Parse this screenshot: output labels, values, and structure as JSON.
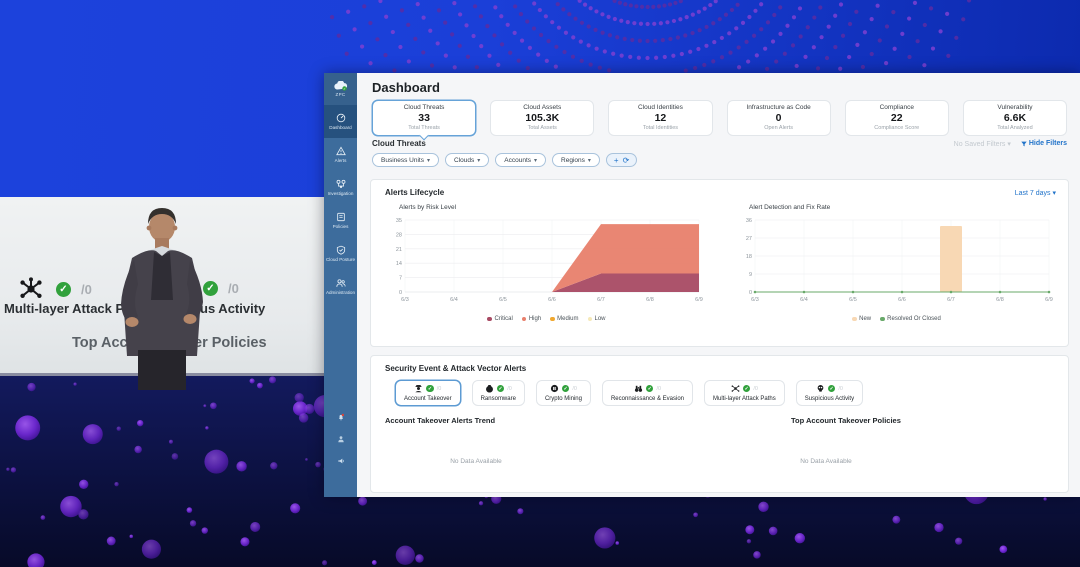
{
  "glyphs": {
    "dropdown": "▾",
    "check": "✓",
    "add": "+",
    "refresh": "⟳"
  },
  "stage": {
    "projection": {
      "attack_paths_count": "/0",
      "attack_paths_label": "Multi-layer Attack Pa",
      "suspicious_count": "/0",
      "suspicious_label": "us Activity",
      "policies_left": "Top Acc",
      "policies_right": "er Policies"
    }
  },
  "sidebar": {
    "logo_label": "ZPC",
    "items": [
      {
        "label": "Dashboard"
      },
      {
        "label": "Alerts"
      },
      {
        "label": "Investigation"
      },
      {
        "label": "Policies"
      },
      {
        "label": "Cloud Posture"
      },
      {
        "label": "Administration"
      }
    ]
  },
  "header": {
    "title": "Dashboard"
  },
  "summary_cards": [
    {
      "title": "Cloud Threats",
      "value": "33",
      "subtitle": "Total Threats",
      "selected": true
    },
    {
      "title": "Cloud Assets",
      "value": "105.3K",
      "subtitle": "Total Assets",
      "selected": false
    },
    {
      "title": "Cloud Identities",
      "value": "12",
      "subtitle": "Total Identities",
      "selected": false
    },
    {
      "title": "Infrastructure as Code",
      "value": "0",
      "subtitle": "Open Alerts",
      "selected": false
    },
    {
      "title": "Compliance",
      "value": "22",
      "subtitle": "Compliance Score",
      "selected": false
    },
    {
      "title": "Vulnerability",
      "value": "6.6K",
      "subtitle": "Total Analyzed",
      "selected": false
    }
  ],
  "filters": {
    "section_title": "Cloud Threats",
    "saved_filters": "No Saved Filters",
    "hide_filters": "Hide Filters",
    "chips": [
      {
        "label": "Business Units"
      },
      {
        "label": "Clouds"
      },
      {
        "label": "Accounts"
      },
      {
        "label": "Regions"
      }
    ]
  },
  "lifecycle": {
    "title": "Alerts Lifecycle",
    "time_range": "Last 7 days"
  },
  "chart_data": [
    {
      "type": "area",
      "title": "Alerts by Risk Level",
      "x": [
        "6/3",
        "6/4",
        "6/5",
        "6/6",
        "6/7",
        "6/8",
        "6/9"
      ],
      "ylim": [
        0,
        35
      ],
      "yticks": [
        0,
        7,
        14,
        21,
        28,
        35
      ],
      "stacked": true,
      "grid": true,
      "legend_position": "bottom",
      "series": [
        {
          "name": "Critical",
          "kind": "area",
          "color": "#a84a63",
          "values": [
            0,
            0,
            0,
            0,
            9,
            9,
            9
          ]
        },
        {
          "name": "High",
          "kind": "area",
          "color": "#e8806c",
          "values": [
            0,
            0,
            0,
            0,
            24,
            24,
            24
          ]
        },
        {
          "name": "Medium",
          "kind": "area",
          "color": "#f0a830",
          "values": [
            0,
            0,
            0,
            0,
            0,
            0,
            0
          ]
        },
        {
          "name": "Low",
          "kind": "area",
          "color": "#f5e9b8",
          "values": [
            0,
            0,
            0,
            0,
            0,
            0,
            0
          ]
        }
      ]
    },
    {
      "type": "bar",
      "title": "Alert Detection and Fix Rate",
      "x": [
        "6/3",
        "6/4",
        "6/5",
        "6/6",
        "6/7",
        "6/8",
        "6/9"
      ],
      "ylim": [
        0,
        36
      ],
      "yticks": [
        0,
        9,
        18,
        27,
        36
      ],
      "grid": true,
      "legend_position": "bottom",
      "series": [
        {
          "name": "New",
          "kind": "bar",
          "color": "#f8d8b4",
          "values": [
            0,
            0,
            0,
            0,
            33,
            0,
            0
          ]
        },
        {
          "name": "Resolved Or Closed",
          "kind": "line",
          "color": "#69a96a",
          "values": [
            0,
            0,
            0,
            0,
            0,
            0,
            0
          ]
        }
      ]
    }
  ],
  "security": {
    "title": "Security Event & Attack Vector Alerts",
    "tabs": [
      {
        "label": "Account Takeover",
        "count": "/0",
        "selected": true
      },
      {
        "label": "Ransomware",
        "count": "/0",
        "selected": false
      },
      {
        "label": "Crypto Mining",
        "count": "/0",
        "selected": false
      },
      {
        "label": "Reconnaissance & Evasion",
        "count": "/0",
        "selected": false
      },
      {
        "label": "Multi-layer Attack Paths",
        "count": "/0",
        "selected": false
      },
      {
        "label": "Suspicious Activity",
        "count": "/0",
        "selected": false
      }
    ],
    "trend_title": "Account Takeover Alerts Trend",
    "policies_title": "Top Account Takeover Policies",
    "no_data": "No Data Available"
  },
  "colors": {
    "accent_blue": "#2173c9",
    "sidebar_blue": "#3d6c9c",
    "sidebar_active": "#26517e",
    "success_green": "#31a13c",
    "bubble_purple": "#8b35e8",
    "stage_blue": "#1b3fd8"
  }
}
